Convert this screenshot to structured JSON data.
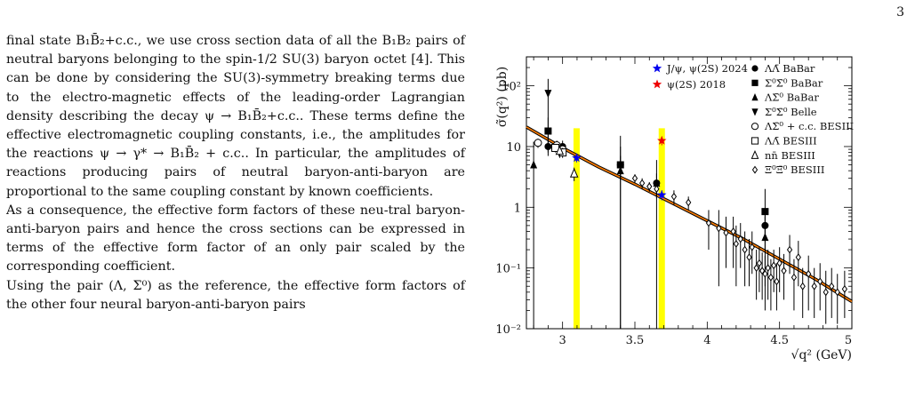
{
  "page_number": "3",
  "paragraphs": [
    "final state B₁B̄₂+c.c., we use cross section data of all the B₁B₂ pairs of neutral baryons belonging to the spin-1/2 SU(3) baryon octet [4]. This can be done by considering the SU(3)-symmetry breaking terms due to the electro-magnetic effects of the leading-order Lagrangian density describing the decay ψ → B₁B̄₂+c.c.. These terms define the effective electromagnetic coupling constants, i.e., the amplitudes for the reactions ψ → γ* → B₁B̄₂ + c.c.. In particular, the amplitudes of reactions producing pairs of neutral baryon-anti-baryon are proportional to the same coupling constant by known coefficients.",
    "As a consequence, the effective form factors of these neu-tral baryon-anti-baryon pairs and hence the cross sections can be expressed in terms of the effective form factor of an only pair scaled by the corresponding coefficient.",
    "Using the pair (Λ, Σ⁰) as the reference, the effective form factors of the other four neural baryon-anti-baryon pairs"
  ],
  "chart_data": {
    "type": "scatter",
    "xlabel": "√q² (GeV)",
    "ylabel": "σ̃(q²) (pb)",
    "xlim": [
      2.75,
      5.0
    ],
    "ylim": [
      0.01,
      300
    ],
    "yscale": "log",
    "grid": false,
    "legend_placement": "top",
    "x_ticks": [
      "3",
      "3.5",
      "4",
      "4.5",
      "5"
    ],
    "x_tick_values": [
      3,
      3.5,
      4,
      4.5,
      5
    ],
    "y_ticks": [
      "10⁻²",
      "10⁻¹",
      "1",
      "10",
      "10²"
    ],
    "y_tick_values": [
      0.01,
      0.1,
      1,
      10,
      100
    ],
    "bands": [
      {
        "label": "J/ψ",
        "x": 3.097,
        "color": "#ffff00"
      },
      {
        "label": "ψ(2S)",
        "x": 3.686,
        "color": "#ffff00"
      }
    ],
    "legend_left": [
      {
        "label": "J/ψ, ψ(2S) 2024",
        "marker": "star",
        "color": "#0000ee"
      },
      {
        "label": "ψ(2S) 2018",
        "marker": "star",
        "color": "#ee0000"
      }
    ],
    "legend_right": [
      {
        "label": "ΛΛ̄ BaBar",
        "marker": "circle-filled"
      },
      {
        "label": "Σ⁰Σ̄⁰ BaBar",
        "marker": "square-filled"
      },
      {
        "label": "ΛΣ̄⁰ BaBar",
        "marker": "triangle-up-filled"
      },
      {
        "label": "Σ⁰Σ̄⁰ Belle",
        "marker": "triangle-down-filled"
      },
      {
        "label": "ΛΣ̄⁰ + c.c. BESIII",
        "marker": "circle-open"
      },
      {
        "label": "ΛΛ̄ BESIII",
        "marker": "square-open"
      },
      {
        "label": "nn̄ BESIII",
        "marker": "triangle-up-open"
      },
      {
        "label": "Ξ⁰Ξ̄⁰ BESIII",
        "marker": "diamond-open"
      }
    ],
    "fit_curve": {
      "x": [
        2.75,
        3.0,
        3.25,
        3.5,
        3.75,
        4.0,
        4.25,
        4.5,
        4.75,
        5.0
      ],
      "y": [
        21,
        9.5,
        4.6,
        2.4,
        1.2,
        0.6,
        0.3,
        0.14,
        0.065,
        0.028
      ],
      "color": "#ff7f00"
    },
    "series": [
      {
        "name": "J/ψ, ψ(2S) 2024",
        "marker": "star",
        "color": "#0000ee",
        "points": [
          {
            "x": 3.097,
            "y": 6.5,
            "ylo": 5.5,
            "yhi": 7.5
          },
          {
            "x": 3.686,
            "y": 1.6,
            "ylo": 1.3,
            "yhi": 1.9
          }
        ]
      },
      {
        "name": "ψ(2S) 2018",
        "marker": "star",
        "color": "#ee0000",
        "points": [
          {
            "x": 3.686,
            "y": 12.5,
            "ylo": 10.5,
            "yhi": 14.5
          }
        ]
      },
      {
        "name": "ΛΛ̄ BaBar",
        "marker": "circle-filled",
        "color": "#000000",
        "points": [
          {
            "x": 2.9,
            "y": 10,
            "ylo": 7,
            "yhi": 13
          },
          {
            "x": 3.0,
            "y": 10,
            "ylo": 7.5,
            "yhi": 12.5
          },
          {
            "x": 3.4,
            "y": 5,
            "ylo": 3,
            "yhi": 7
          },
          {
            "x": 3.65,
            "y": 2.5,
            "ylo": 1.4,
            "yhi": 3.6
          },
          {
            "x": 4.4,
            "y": 0.5,
            "ylo": 0.35,
            "yhi": 0.7
          }
        ]
      },
      {
        "name": "Σ⁰Σ̄⁰ BaBar",
        "marker": "square-filled",
        "color": "#000000",
        "points": [
          {
            "x": 2.9,
            "y": 18,
            "ylo": 8,
            "yhi": 30
          },
          {
            "x": 3.4,
            "y": 5,
            "ylo": 0.01,
            "yhi": 15
          },
          {
            "x": 4.4,
            "y": 0.85,
            "ylo": 0.2,
            "yhi": 2
          }
        ]
      },
      {
        "name": "ΛΣ̄⁰ BaBar",
        "marker": "triangle-up-filled",
        "color": "#000000",
        "points": [
          {
            "x": 2.8,
            "y": 5,
            "ylo": 0.01,
            "yhi": 12
          },
          {
            "x": 3.4,
            "y": 4,
            "ylo": 0.01,
            "yhi": 10
          },
          {
            "x": 3.65,
            "y": 2.5,
            "ylo": 0.01,
            "yhi": 6
          },
          {
            "x": 4.4,
            "y": 0.32,
            "ylo": 0.05,
            "yhi": 0.8
          }
        ]
      },
      {
        "name": "Σ⁰Σ̄⁰ Belle",
        "marker": "triangle-down-filled",
        "color": "#000000",
        "points": [
          {
            "x": 2.9,
            "y": 75,
            "ylo": 10,
            "yhi": 130
          }
        ]
      },
      {
        "name": "ΛΣ̄⁰ + c.c. BESIII",
        "marker": "circle-open",
        "color": "#000000",
        "points": [
          {
            "x": 2.83,
            "y": 11.5,
            "ylo": 9.5,
            "yhi": 13.5
          },
          {
            "x": 2.96,
            "y": 10.5,
            "ylo": 8.5,
            "yhi": 12.5
          },
          {
            "x": 3.0,
            "y": 9,
            "ylo": 7,
            "yhi": 11
          }
        ]
      },
      {
        "name": "ΛΛ̄ BESIII",
        "marker": "square-open",
        "color": "#000000",
        "points": [
          {
            "x": 2.95,
            "y": 9.5,
            "ylo": 8,
            "yhi": 11
          },
          {
            "x": 3.0,
            "y": 8,
            "ylo": 6.5,
            "yhi": 9.5
          }
        ]
      },
      {
        "name": "nn̄ BESIII",
        "marker": "triangle-up-open",
        "color": "#000000",
        "points": [
          {
            "x": 3.08,
            "y": 3.6,
            "ylo": 2.7,
            "yhi": 4.5
          },
          {
            "x": 2.98,
            "y": 8.5,
            "ylo": 6.5,
            "yhi": 10.5
          }
        ]
      },
      {
        "name": "Ξ⁰Ξ̄⁰ BESIII",
        "marker": "diamond-open",
        "color": "#000000",
        "points": [
          {
            "x": 3.5,
            "y": 3.0,
            "ylo": 2.5,
            "yhi": 3.5
          },
          {
            "x": 3.55,
            "y": 2.5,
            "ylo": 2.0,
            "yhi": 3.0
          },
          {
            "x": 3.6,
            "y": 2.2,
            "ylo": 1.8,
            "yhi": 2.6
          },
          {
            "x": 3.65,
            "y": 2.0,
            "ylo": 1.5,
            "yhi": 2.5
          },
          {
            "x": 3.77,
            "y": 1.5,
            "ylo": 1.1,
            "yhi": 1.9
          },
          {
            "x": 3.87,
            "y": 1.2,
            "ylo": 0.9,
            "yhi": 1.5
          },
          {
            "x": 4.01,
            "y": 0.55,
            "ylo": 0.2,
            "yhi": 0.9
          },
          {
            "x": 4.08,
            "y": 0.45,
            "ylo": 0.05,
            "yhi": 0.9
          },
          {
            "x": 4.13,
            "y": 0.38,
            "ylo": 0.1,
            "yhi": 0.7
          },
          {
            "x": 4.18,
            "y": 0.4,
            "ylo": 0.1,
            "yhi": 0.7
          },
          {
            "x": 4.2,
            "y": 0.25,
            "ylo": 0.05,
            "yhi": 0.5
          },
          {
            "x": 4.23,
            "y": 0.3,
            "ylo": 0.1,
            "yhi": 0.55
          },
          {
            "x": 4.26,
            "y": 0.2,
            "ylo": 0.05,
            "yhi": 0.4
          },
          {
            "x": 4.29,
            "y": 0.15,
            "ylo": 0.05,
            "yhi": 0.3
          },
          {
            "x": 4.31,
            "y": 0.22,
            "ylo": 0.08,
            "yhi": 0.4
          },
          {
            "x": 4.34,
            "y": 0.1,
            "ylo": 0.03,
            "yhi": 0.2
          },
          {
            "x": 4.36,
            "y": 0.12,
            "ylo": 0.04,
            "yhi": 0.22
          },
          {
            "x": 4.38,
            "y": 0.09,
            "ylo": 0.03,
            "yhi": 0.18
          },
          {
            "x": 4.4,
            "y": 0.08,
            "ylo": 0.02,
            "yhi": 0.16
          },
          {
            "x": 4.42,
            "y": 0.1,
            "ylo": 0.03,
            "yhi": 0.2
          },
          {
            "x": 4.44,
            "y": 0.07,
            "ylo": 0.02,
            "yhi": 0.14
          },
          {
            "x": 4.46,
            "y": 0.11,
            "ylo": 0.04,
            "yhi": 0.2
          },
          {
            "x": 4.48,
            "y": 0.06,
            "ylo": 0.02,
            "yhi": 0.12
          },
          {
            "x": 4.5,
            "y": 0.12,
            "ylo": 0.04,
            "yhi": 0.22
          },
          {
            "x": 4.53,
            "y": 0.09,
            "ylo": 0.03,
            "yhi": 0.17
          },
          {
            "x": 4.57,
            "y": 0.2,
            "ylo": 0.08,
            "yhi": 0.35
          },
          {
            "x": 4.6,
            "y": 0.07,
            "ylo": 0.02,
            "yhi": 0.14
          },
          {
            "x": 4.63,
            "y": 0.15,
            "ylo": 0.05,
            "yhi": 0.28
          },
          {
            "x": 4.66,
            "y": 0.05,
            "ylo": 0.015,
            "yhi": 0.1
          },
          {
            "x": 4.7,
            "y": 0.08,
            "ylo": 0.02,
            "yhi": 0.16
          },
          {
            "x": 4.74,
            "y": 0.05,
            "ylo": 0.015,
            "yhi": 0.1
          },
          {
            "x": 4.78,
            "y": 0.06,
            "ylo": 0.02,
            "yhi": 0.12
          },
          {
            "x": 4.82,
            "y": 0.04,
            "ylo": 0.012,
            "yhi": 0.09
          },
          {
            "x": 4.86,
            "y": 0.05,
            "ylo": 0.015,
            "yhi": 0.1
          },
          {
            "x": 4.9,
            "y": 0.04,
            "ylo": 0.012,
            "yhi": 0.08
          },
          {
            "x": 4.95,
            "y": 0.045,
            "ylo": 0.015,
            "yhi": 0.09
          }
        ]
      }
    ]
  }
}
